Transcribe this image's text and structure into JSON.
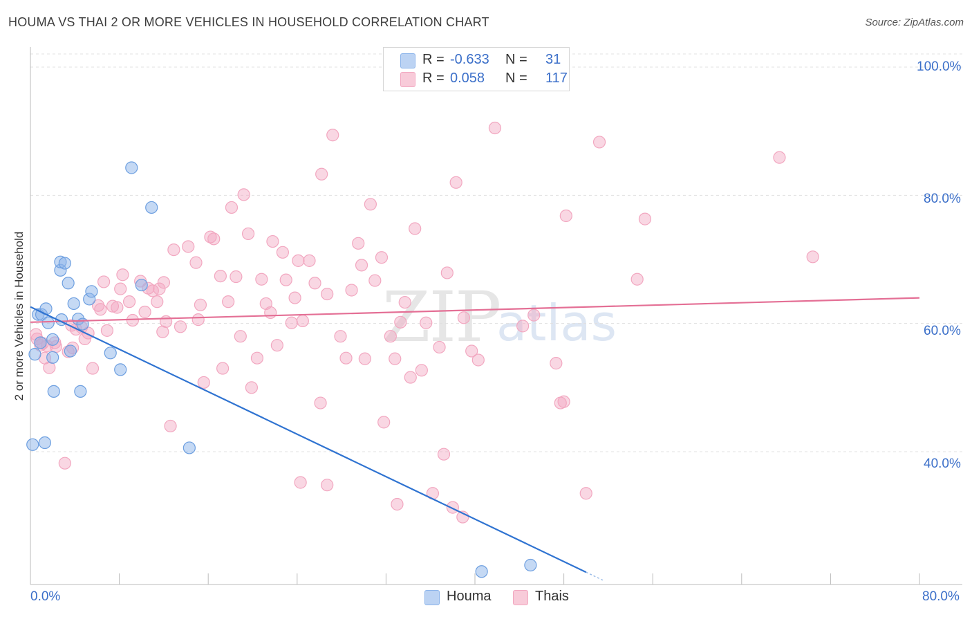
{
  "title": "HOUMA VS THAI 2 OR MORE VEHICLES IN HOUSEHOLD CORRELATION CHART",
  "source": "Source: ZipAtlas.com",
  "watermark": {
    "zip": "ZIP",
    "atlas": "atlas"
  },
  "colors": {
    "houma": "#8cb4ea",
    "houma_line": "#2f73d1",
    "thais": "#f2a7c0",
    "thais_line": "#e46f95",
    "accent_text": "#3b6fc9"
  },
  "legend": {
    "rows": [
      {
        "r_label": "R =",
        "r_value": "-0.633",
        "n_label": "N =",
        "n_value": "31"
      },
      {
        "r_label": "R =",
        "r_value": "0.058",
        "n_label": "N =",
        "n_value": "117"
      }
    ]
  },
  "bottom_legend": {
    "series1": "Houma",
    "series2": "Thais"
  },
  "axes": {
    "x_min_label": "0.0%",
    "x_max_label": "80.0%",
    "y_tick_labels": [
      "100.0%",
      "80.0%",
      "60.0%",
      "40.0%"
    ],
    "y_label": "2 or more Vehicles in Household"
  },
  "chart_data": {
    "type": "scatter",
    "title": "HOUMA VS THAI 2 OR MORE VEHICLES IN HOUSEHOLD CORRELATION CHART",
    "xlabel": "",
    "ylabel": "2 or more Vehicles in Household",
    "xlim": [
      0,
      80
    ],
    "ylim": [
      20,
      102
    ],
    "y_ticks": [
      40,
      60,
      80,
      100
    ],
    "series": [
      {
        "name": "Houma",
        "r": -0.633,
        "n": 31,
        "trend": {
          "x0": 0,
          "y0": 62.6,
          "x1": 50,
          "y1": 21.2
        },
        "points": [
          [
            0.2,
            41.1
          ],
          [
            1.3,
            41.4
          ],
          [
            0.4,
            55.2
          ],
          [
            0.7,
            61.4
          ],
          [
            1.0,
            61.4
          ],
          [
            1.4,
            62.3
          ],
          [
            1.6,
            60.1
          ],
          [
            2.0,
            54.7
          ],
          [
            2.0,
            57.5
          ],
          [
            2.1,
            49.4
          ],
          [
            2.7,
            68.3
          ],
          [
            2.7,
            69.6
          ],
          [
            3.1,
            69.4
          ],
          [
            3.4,
            66.3
          ],
          [
            3.6,
            55.7
          ],
          [
            3.9,
            63.1
          ],
          [
            4.3,
            60.7
          ],
          [
            4.5,
            49.4
          ],
          [
            4.7,
            59.9
          ],
          [
            5.3,
            63.8
          ],
          [
            5.5,
            65.0
          ],
          [
            7.2,
            55.4
          ],
          [
            8.1,
            52.8
          ],
          [
            9.1,
            84.3
          ],
          [
            10.0,
            66.0
          ],
          [
            10.9,
            78.1
          ],
          [
            14.3,
            40.6
          ],
          [
            40.6,
            21.3
          ],
          [
            45.0,
            22.3
          ],
          [
            2.8,
            60.6
          ],
          [
            0.9,
            57.0
          ]
        ]
      },
      {
        "name": "Thais",
        "r": 0.058,
        "n": 117,
        "trend": {
          "x0": 0,
          "y0": 60.2,
          "x1": 80,
          "y1": 64.0
        },
        "points": [
          [
            0.5,
            58.3
          ],
          [
            0.6,
            57.6
          ],
          [
            0.9,
            56.6
          ],
          [
            1.1,
            56.9
          ],
          [
            1.3,
            54.6
          ],
          [
            1.5,
            56.5
          ],
          [
            1.7,
            53.1
          ],
          [
            2.3,
            56.4
          ],
          [
            3.1,
            38.2
          ],
          [
            3.4,
            55.6
          ],
          [
            3.8,
            56.2
          ],
          [
            4.1,
            59.1
          ],
          [
            4.6,
            59.4
          ],
          [
            4.9,
            57.6
          ],
          [
            5.2,
            58.5
          ],
          [
            5.6,
            53.0
          ],
          [
            6.1,
            62.8
          ],
          [
            6.3,
            62.2
          ],
          [
            6.6,
            66.5
          ],
          [
            6.9,
            58.9
          ],
          [
            7.4,
            62.7
          ],
          [
            7.8,
            62.5
          ],
          [
            8.1,
            65.4
          ],
          [
            8.3,
            67.6
          ],
          [
            8.9,
            63.4
          ],
          [
            9.2,
            60.5
          ],
          [
            9.9,
            66.6
          ],
          [
            10.3,
            61.8
          ],
          [
            10.6,
            65.5
          ],
          [
            11.0,
            65.1
          ],
          [
            11.4,
            63.4
          ],
          [
            11.6,
            65.4
          ],
          [
            12.0,
            66.4
          ],
          [
            12.2,
            60.3
          ],
          [
            12.6,
            44.0
          ],
          [
            12.9,
            71.5
          ],
          [
            13.5,
            59.5
          ],
          [
            14.2,
            72.0
          ],
          [
            14.9,
            69.5
          ],
          [
            15.1,
            60.6
          ],
          [
            15.3,
            62.9
          ],
          [
            15.6,
            50.8
          ],
          [
            16.2,
            73.5
          ],
          [
            16.5,
            73.2
          ],
          [
            17.1,
            67.4
          ],
          [
            17.3,
            53.0
          ],
          [
            17.8,
            63.4
          ],
          [
            18.1,
            78.1
          ],
          [
            18.5,
            67.3
          ],
          [
            18.9,
            58.0
          ],
          [
            19.2,
            80.1
          ],
          [
            19.6,
            74.0
          ],
          [
            19.9,
            50.0
          ],
          [
            20.4,
            54.6
          ],
          [
            20.8,
            66.9
          ],
          [
            21.2,
            63.1
          ],
          [
            21.6,
            61.7
          ],
          [
            21.8,
            72.8
          ],
          [
            22.2,
            56.6
          ],
          [
            22.7,
            71.1
          ],
          [
            23.0,
            66.8
          ],
          [
            23.5,
            60.1
          ],
          [
            23.8,
            64.0
          ],
          [
            24.1,
            69.8
          ],
          [
            24.5,
            60.4
          ],
          [
            25.1,
            69.8
          ],
          [
            25.6,
            66.3
          ],
          [
            26.1,
            47.6
          ],
          [
            26.2,
            83.3
          ],
          [
            26.7,
            64.6
          ],
          [
            27.2,
            89.4
          ],
          [
            27.9,
            58.0
          ],
          [
            28.4,
            54.6
          ],
          [
            28.9,
            65.2
          ],
          [
            29.5,
            72.5
          ],
          [
            29.8,
            69.1
          ],
          [
            30.1,
            54.5
          ],
          [
            30.6,
            78.6
          ],
          [
            31.0,
            66.7
          ],
          [
            31.6,
            70.3
          ],
          [
            31.8,
            44.6
          ],
          [
            32.4,
            58.0
          ],
          [
            32.8,
            54.5
          ],
          [
            33.3,
            60.2
          ],
          [
            33.7,
            63.3
          ],
          [
            34.2,
            51.6
          ],
          [
            34.6,
            74.8
          ],
          [
            35.2,
            52.7
          ],
          [
            35.6,
            60.1
          ],
          [
            36.2,
            33.5
          ],
          [
            36.8,
            56.3
          ],
          [
            37.2,
            39.6
          ],
          [
            37.5,
            67.9
          ],
          [
            38.0,
            31.3
          ],
          [
            38.3,
            82.0
          ],
          [
            39.0,
            60.9
          ],
          [
            39.7,
            55.7
          ],
          [
            40.3,
            54.3
          ],
          [
            41.8,
            90.5
          ],
          [
            44.3,
            59.6
          ],
          [
            45.3,
            61.3
          ],
          [
            47.3,
            53.8
          ],
          [
            47.7,
            47.6
          ],
          [
            48.0,
            47.8
          ],
          [
            48.2,
            76.8
          ],
          [
            50.0,
            33.5
          ],
          [
            51.2,
            88.3
          ],
          [
            54.6,
            66.9
          ],
          [
            55.3,
            76.3
          ],
          [
            67.4,
            85.9
          ],
          [
            70.4,
            70.4
          ],
          [
            11.9,
            58.7
          ],
          [
            24.3,
            35.2
          ],
          [
            26.7,
            34.8
          ],
          [
            33.0,
            31.8
          ],
          [
            38.9,
            29.8
          ],
          [
            2.2,
            57.0
          ],
          [
            3.7,
            59.7
          ]
        ]
      }
    ]
  }
}
